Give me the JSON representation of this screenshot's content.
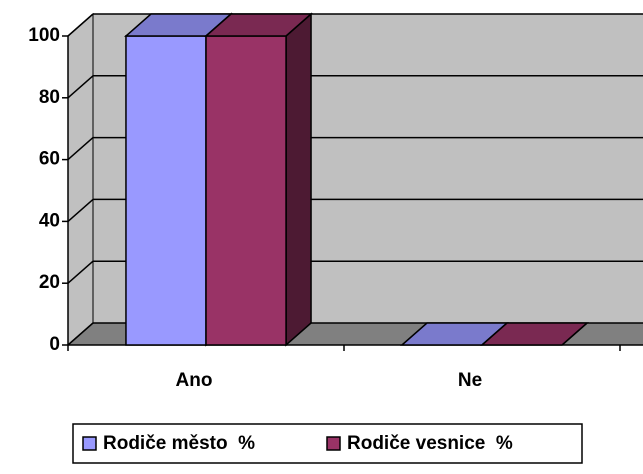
{
  "chart_data": {
    "type": "bar3d",
    "categories": [
      "Ano",
      "Ne"
    ],
    "series": [
      {
        "name": "Rodiče město  %",
        "color": "#9999ff",
        "values": [
          100,
          0
        ]
      },
      {
        "name": "Rodiče vesnice  %",
        "color": "#993366",
        "values": [
          100,
          0
        ]
      }
    ],
    "ylim": [
      0,
      100
    ],
    "yticks": [
      0,
      20,
      40,
      60,
      80,
      100
    ],
    "grid": true,
    "legend": "bottom"
  }
}
